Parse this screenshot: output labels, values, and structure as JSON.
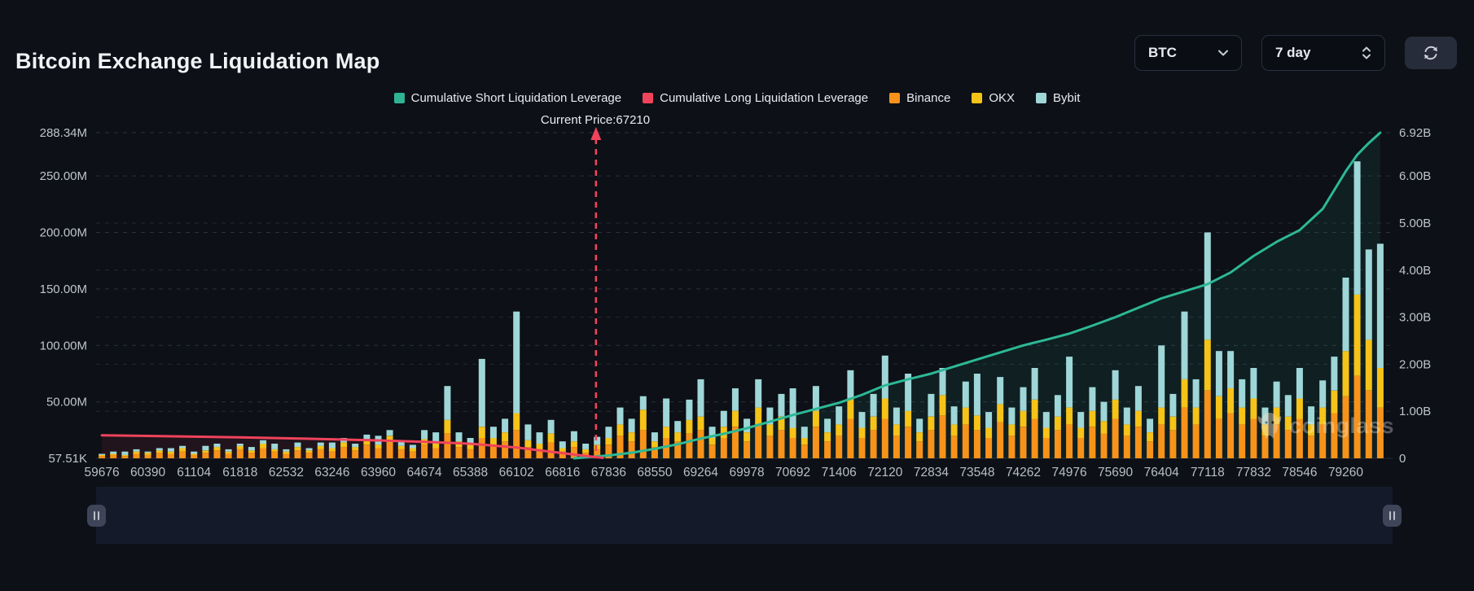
{
  "header": {
    "title": "Bitcoin Exchange Liquidation Map",
    "symbol_select": {
      "value": "BTC"
    },
    "range_select": {
      "value": "7 day"
    }
  },
  "icons": {
    "symbol_caret": "chevron-down",
    "range_caret": "up-down-stepper",
    "refresh": "circular-arrows-refresh",
    "slider_handle": "pause-bars"
  },
  "annotation": {
    "current_price_label": "Current Price:67210",
    "current_price": 67210
  },
  "watermark": "coinglass",
  "legend": [
    {
      "label": "Cumulative Short Liquidation Leverage",
      "color": "#2fb394",
      "type": "line"
    },
    {
      "label": "Cumulative Long Liquidation Leverage",
      "color": "#f0435c",
      "type": "line"
    },
    {
      "label": "Binance",
      "color": "#f7931a",
      "type": "bar"
    },
    {
      "label": "OKX",
      "color": "#f6c318",
      "type": "bar"
    },
    {
      "label": "Bybit",
      "color": "#9fd6d8",
      "type": "bar"
    }
  ],
  "chart_data": {
    "type": "bar",
    "title": "Bitcoin Exchange Liquidation Map",
    "x_tick_labels": [
      "59676",
      "60390",
      "61104",
      "61818",
      "62532",
      "63246",
      "63960",
      "64674",
      "65388",
      "66102",
      "66816",
      "67836",
      "68550",
      "69264",
      "69978",
      "70692",
      "71406",
      "72120",
      "72834",
      "73548",
      "74262",
      "74976",
      "75690",
      "76404",
      "77118",
      "77832",
      "78546",
      "79260"
    ],
    "bars_per_tick": 4,
    "left_axis": {
      "unit": "M (USD)",
      "max": 288.34,
      "labels": [
        {
          "text": "288.34M",
          "value": 288.34
        },
        {
          "text": "250.00M",
          "value": 250
        },
        {
          "text": "200.00M",
          "value": 200
        },
        {
          "text": "150.00M",
          "value": 150
        },
        {
          "text": "100.00M",
          "value": 100
        },
        {
          "text": "50.00M",
          "value": 50
        },
        {
          "text": "57.51K",
          "value": 0
        }
      ],
      "gridline_values": [
        288.34,
        250,
        200,
        150,
        100,
        50
      ]
    },
    "right_axis": {
      "unit": "B (USD)",
      "max": 6.92,
      "labels": [
        {
          "text": "6.92B",
          "value": 6.92
        },
        {
          "text": "6.00B",
          "value": 6
        },
        {
          "text": "5.00B",
          "value": 5
        },
        {
          "text": "4.00B",
          "value": 4
        },
        {
          "text": "3.00B",
          "value": 3
        },
        {
          "text": "2.00B",
          "value": 2
        },
        {
          "text": "1.00B",
          "value": 1
        },
        {
          "text": "0",
          "value": 0
        }
      ],
      "gridline_values": [
        6,
        5,
        4,
        3,
        2,
        1
      ]
    },
    "series": [
      {
        "name": "Binance",
        "type": "bar",
        "axis": "left",
        "unit": "M",
        "color": "#f7931a",
        "values": [
          2,
          3,
          2,
          4,
          3,
          5,
          4,
          6,
          3,
          5,
          7,
          4,
          8,
          5,
          9,
          6,
          4,
          7,
          5,
          8,
          6,
          10,
          7,
          12,
          9,
          14,
          8,
          6,
          12,
          9,
          22,
          10,
          8,
          18,
          12,
          15,
          25,
          10,
          8,
          14,
          6,
          10,
          5,
          8,
          12,
          20,
          15,
          25,
          10,
          18,
          15,
          22,
          25,
          12,
          18,
          28,
          15,
          30,
          20,
          25,
          18,
          12,
          28,
          15,
          20,
          35,
          18,
          25,
          35,
          20,
          28,
          15,
          25,
          38,
          20,
          30,
          25,
          18,
          32,
          20,
          28,
          35,
          18,
          25,
          30,
          18,
          28,
          22,
          35,
          20,
          28,
          15,
          30,
          25,
          45,
          30,
          60,
          35,
          40,
          30,
          35,
          20,
          30,
          25,
          35,
          20,
          30,
          40,
          55,
          73,
          60,
          45
        ]
      },
      {
        "name": "OKX",
        "type": "bar",
        "axis": "left",
        "unit": "M",
        "color": "#f6c318",
        "values": [
          1,
          1,
          1,
          2,
          2,
          2,
          2,
          3,
          1,
          2,
          3,
          2,
          3,
          2,
          4,
          2,
          2,
          3,
          2,
          3,
          3,
          4,
          3,
          5,
          3,
          6,
          3,
          3,
          5,
          4,
          12,
          5,
          4,
          10,
          6,
          8,
          15,
          6,
          5,
          8,
          3,
          5,
          3,
          4,
          6,
          10,
          8,
          18,
          5,
          10,
          8,
          12,
          12,
          6,
          10,
          14,
          8,
          15,
          10,
          12,
          9,
          6,
          14,
          8,
          10,
          18,
          9,
          12,
          18,
          10,
          14,
          8,
          12,
          18,
          10,
          15,
          13,
          9,
          16,
          10,
          14,
          17,
          9,
          12,
          15,
          9,
          14,
          11,
          17,
          10,
          14,
          8,
          15,
          12,
          25,
          15,
          45,
          20,
          22,
          15,
          18,
          10,
          15,
          12,
          18,
          10,
          15,
          20,
          40,
          72,
          45,
          35
        ]
      },
      {
        "name": "Bybit",
        "type": "bar",
        "axis": "left",
        "unit": "M",
        "color": "#9fd6d8",
        "values": [
          1,
          2,
          3,
          2,
          1,
          2,
          3,
          2,
          2,
          4,
          3,
          2,
          2,
          3,
          3,
          5,
          2,
          4,
          2,
          3,
          5,
          4,
          3,
          4,
          8,
          5,
          4,
          3,
          8,
          10,
          30,
          8,
          6,
          60,
          10,
          12,
          90,
          14,
          10,
          12,
          6,
          9,
          5,
          7,
          10,
          15,
          12,
          12,
          8,
          25,
          10,
          18,
          33,
          10,
          14,
          20,
          12,
          25,
          15,
          20,
          35,
          10,
          22,
          12,
          16,
          25,
          14,
          20,
          38,
          15,
          33,
          12,
          20,
          24,
          16,
          23,
          37,
          14,
          24,
          15,
          21,
          28,
          14,
          19,
          45,
          14,
          21,
          17,
          26,
          15,
          22,
          12,
          55,
          20,
          60,
          25,
          95,
          40,
          33,
          25,
          27,
          15,
          23,
          19,
          27,
          16,
          24,
          30,
          65,
          118,
          80,
          110
        ]
      },
      {
        "name": "Cumulative Short Liquidation Leverage",
        "type": "line",
        "axis": "right",
        "unit": "B",
        "color": "#2db896",
        "points": [
          [
            41,
            0
          ],
          [
            44,
            0.06
          ],
          [
            46,
            0.12
          ],
          [
            48,
            0.2
          ],
          [
            50,
            0.3
          ],
          [
            52,
            0.42
          ],
          [
            54,
            0.52
          ],
          [
            56,
            0.64
          ],
          [
            58,
            0.78
          ],
          [
            60,
            0.92
          ],
          [
            62,
            1.05
          ],
          [
            64,
            1.18
          ],
          [
            66,
            1.35
          ],
          [
            68,
            1.55
          ],
          [
            70,
            1.68
          ],
          [
            72,
            1.8
          ],
          [
            74,
            1.95
          ],
          [
            76,
            2.1
          ],
          [
            78,
            2.25
          ],
          [
            80,
            2.4
          ],
          [
            82,
            2.52
          ],
          [
            84,
            2.65
          ],
          [
            86,
            2.82
          ],
          [
            88,
            3.0
          ],
          [
            90,
            3.2
          ],
          [
            92,
            3.4
          ],
          [
            94,
            3.55
          ],
          [
            96,
            3.7
          ],
          [
            98,
            3.95
          ],
          [
            100,
            4.3
          ],
          [
            102,
            4.6
          ],
          [
            104,
            4.85
          ],
          [
            106,
            5.3
          ],
          [
            107,
            5.7
          ],
          [
            108,
            6.1
          ],
          [
            109,
            6.45
          ],
          [
            110,
            6.7
          ],
          [
            111,
            6.92
          ]
        ]
      },
      {
        "name": "Cumulative Long Liquidation Leverage",
        "type": "line",
        "axis": "right",
        "unit": "B",
        "color": "#f0435c",
        "points": [
          [
            0,
            0.49
          ],
          [
            4,
            0.475
          ],
          [
            8,
            0.46
          ],
          [
            12,
            0.445
          ],
          [
            16,
            0.425
          ],
          [
            20,
            0.405
          ],
          [
            24,
            0.38
          ],
          [
            28,
            0.35
          ],
          [
            30,
            0.33
          ],
          [
            32,
            0.31
          ],
          [
            34,
            0.27
          ],
          [
            36,
            0.23
          ],
          [
            38,
            0.17
          ],
          [
            40,
            0.11
          ],
          [
            42,
            0.05
          ],
          [
            43.5,
            0.01
          ]
        ]
      }
    ],
    "current_price_bar_index": 42.9,
    "grid": true,
    "legend_position": "top-center"
  }
}
